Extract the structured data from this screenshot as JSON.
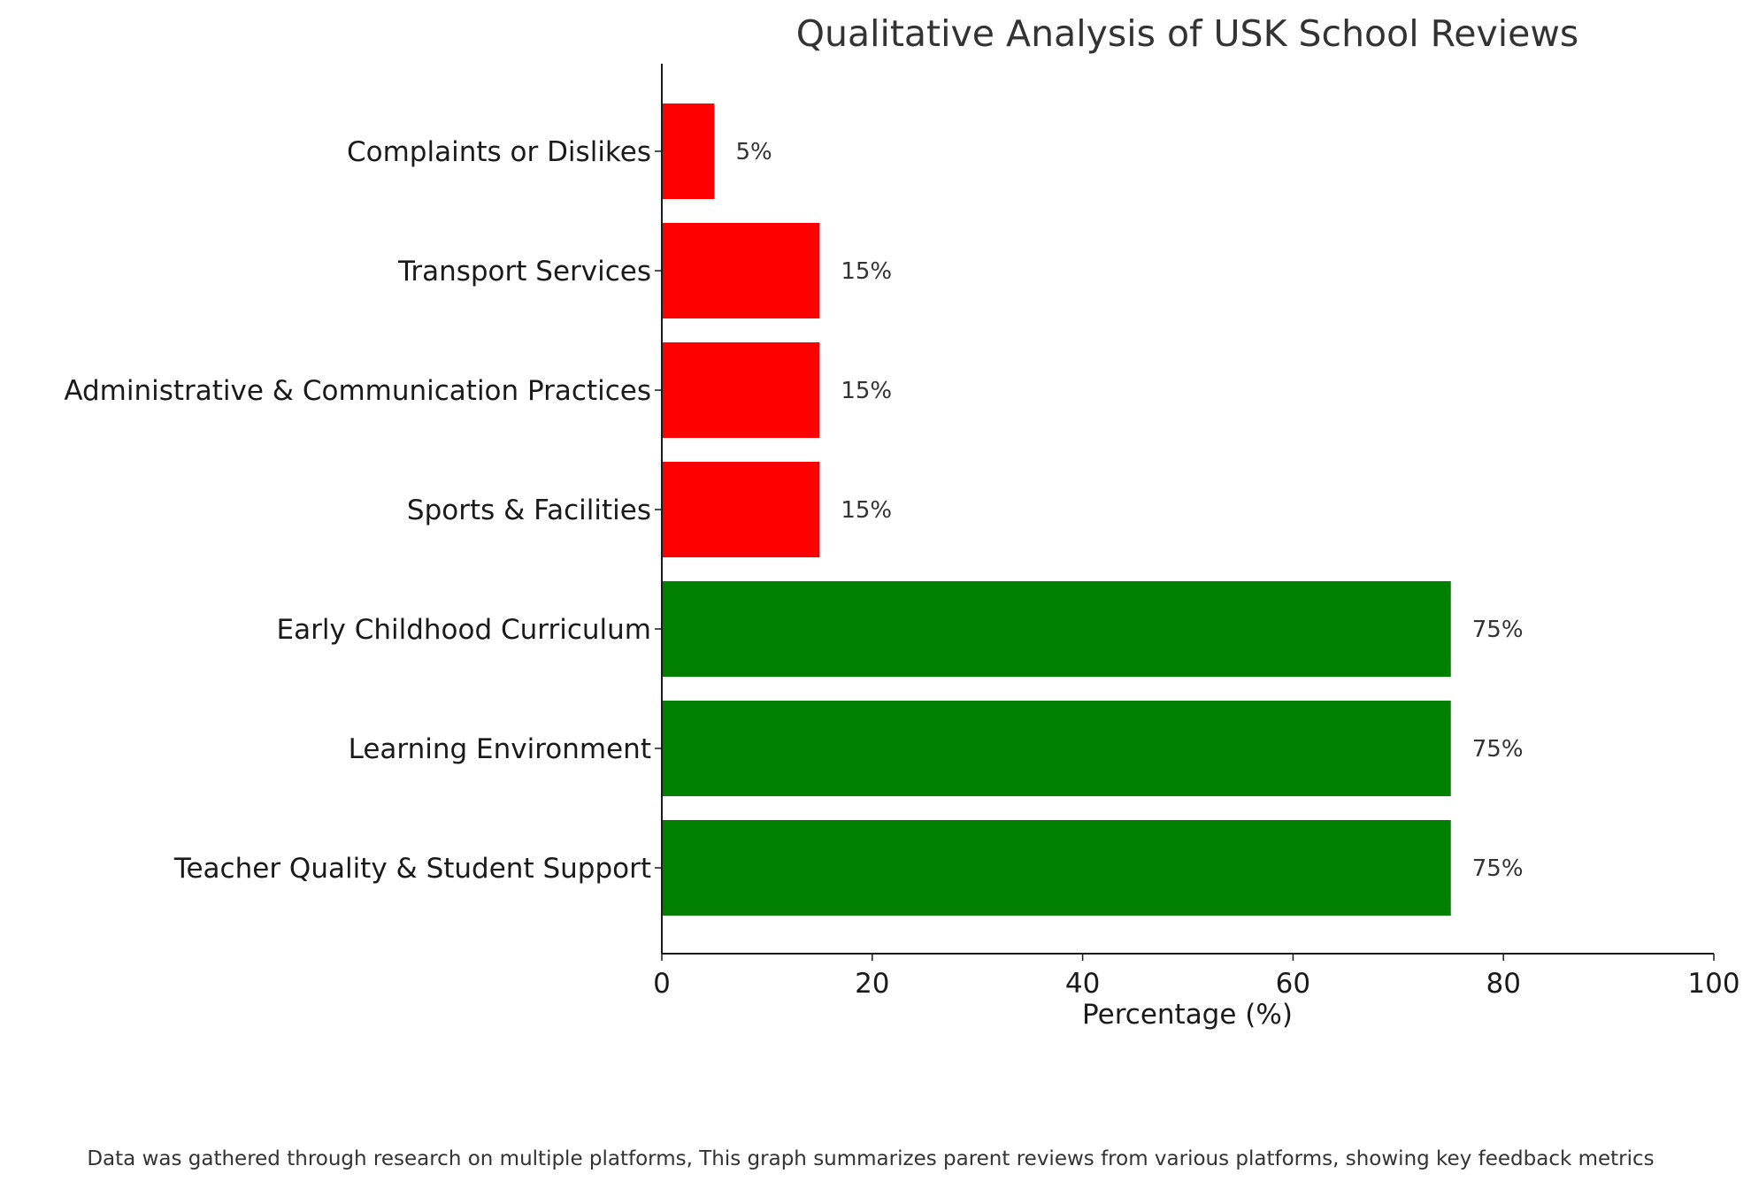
{
  "chart_data": {
    "type": "bar",
    "orientation": "horizontal",
    "title": "Qualitative Analysis of USK School Reviews",
    "xlabel": "Percentage (%)",
    "ylabel": "",
    "xlim": [
      0,
      100
    ],
    "xticks": [
      0,
      20,
      40,
      60,
      80,
      100
    ],
    "grid": false,
    "categories": [
      "Teacher Quality & Student Support",
      "Learning Environment",
      "Early Childhood Curriculum",
      "Sports & Facilities",
      "Administrative & Communication Practices",
      "Transport Services",
      "Complaints or Dislikes"
    ],
    "values": [
      75,
      75,
      75,
      15,
      15,
      15,
      5
    ],
    "value_labels": [
      "75%",
      "75%",
      "75%",
      "15%",
      "15%",
      "15%",
      "5%"
    ],
    "bar_colors": [
      "#008000",
      "#008000",
      "#008000",
      "#ff0000",
      "#ff0000",
      "#ff0000",
      "#ff0000"
    ]
  },
  "footnote": "Data was gathered through research on multiple platforms, This graph summarizes parent reviews from various platforms, showing key feedback metrics"
}
